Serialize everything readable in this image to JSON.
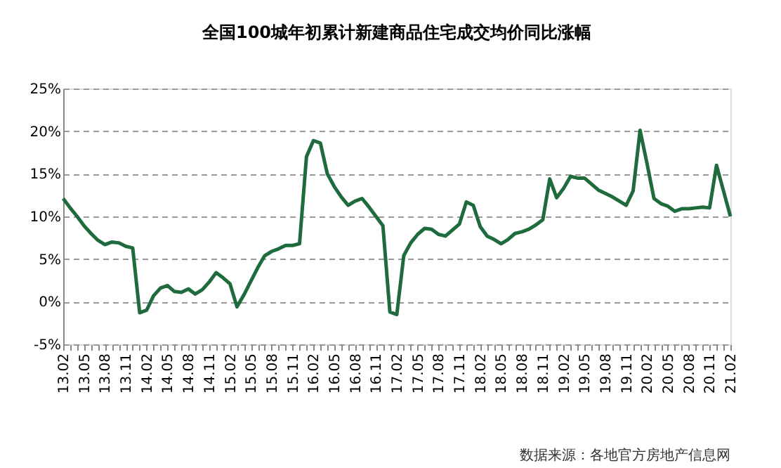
{
  "chart_data": {
    "type": "line",
    "title": "全国100城年初累计新建商品住宅成交均价同比涨幅",
    "categories": [
      "13.02",
      null,
      null,
      "13.05",
      null,
      null,
      "13.08",
      null,
      null,
      "13.11",
      null,
      null,
      "14.02",
      null,
      null,
      "14.05",
      null,
      null,
      "14.08",
      null,
      null,
      "14.11",
      null,
      null,
      "15.02",
      null,
      null,
      "15.05",
      null,
      null,
      "15.08",
      null,
      null,
      "15.11",
      null,
      null,
      "16.02",
      null,
      null,
      "16.05",
      null,
      null,
      "16.08",
      null,
      null,
      "16.11",
      null,
      null,
      "17.02",
      null,
      null,
      "17.05",
      null,
      null,
      "17.08",
      null,
      null,
      "17.11",
      null,
      null,
      "18.02",
      null,
      null,
      "18.05",
      null,
      null,
      "18.08",
      null,
      null,
      "18.11",
      null,
      null,
      "19.02",
      null,
      null,
      "19.05",
      null,
      null,
      "19.08",
      null,
      null,
      "19.11",
      null,
      null,
      "20.02",
      null,
      null,
      "20.05",
      null,
      null,
      "20.08",
      null,
      null,
      "20.11",
      null,
      null,
      "21.02"
    ],
    "series": [
      {
        "color": "#1e6b3c",
        "values": [
          12.1,
          11.0,
          10.0,
          8.9,
          8.0,
          7.2,
          6.7,
          7.0,
          6.9,
          6.5,
          6.3,
          -1.3,
          -1.0,
          0.7,
          1.6,
          1.9,
          1.2,
          1.1,
          1.5,
          0.9,
          1.4,
          2.3,
          3.4,
          2.8,
          2.1,
          -0.6,
          0.8,
          2.4,
          4.0,
          5.4,
          5.9,
          6.2,
          6.6,
          6.6,
          6.8,
          17.0,
          18.9,
          18.6,
          15.0,
          13.5,
          12.3,
          11.3,
          11.8,
          12.1,
          11.1,
          10.0,
          8.9,
          -1.2,
          -1.5,
          5.4,
          6.9,
          7.9,
          8.6,
          8.5,
          7.9,
          7.7,
          8.4,
          9.1,
          11.7,
          11.3,
          8.8,
          7.7,
          7.3,
          6.8,
          7.3,
          8.0,
          8.2,
          8.5,
          9.0,
          9.6,
          14.4,
          12.2,
          13.3,
          14.7,
          14.5,
          14.5,
          13.8,
          13.1,
          12.7,
          12.3,
          11.8,
          11.3,
          13.0,
          20.1,
          16.2,
          12.1,
          11.5,
          11.2,
          10.6,
          10.9,
          10.9,
          11.0,
          11.1,
          11.0,
          16.0,
          13.0,
          10.0
        ]
      }
    ],
    "ylim": [
      -5,
      25
    ],
    "yticks": [
      {
        "value": -5,
        "label": "-5%"
      },
      {
        "value": 0,
        "label": "0%"
      },
      {
        "value": 5,
        "label": "5%"
      },
      {
        "value": 10,
        "label": "10%"
      },
      {
        "value": 15,
        "label": "15%"
      },
      {
        "value": 20,
        "label": "20%"
      },
      {
        "value": 25,
        "label": "25%"
      }
    ],
    "grid": "y",
    "legend": false,
    "marker": "none",
    "line_style": "solid",
    "annotations": [
      "数据来源：各地官方房地产信息网"
    ]
  }
}
